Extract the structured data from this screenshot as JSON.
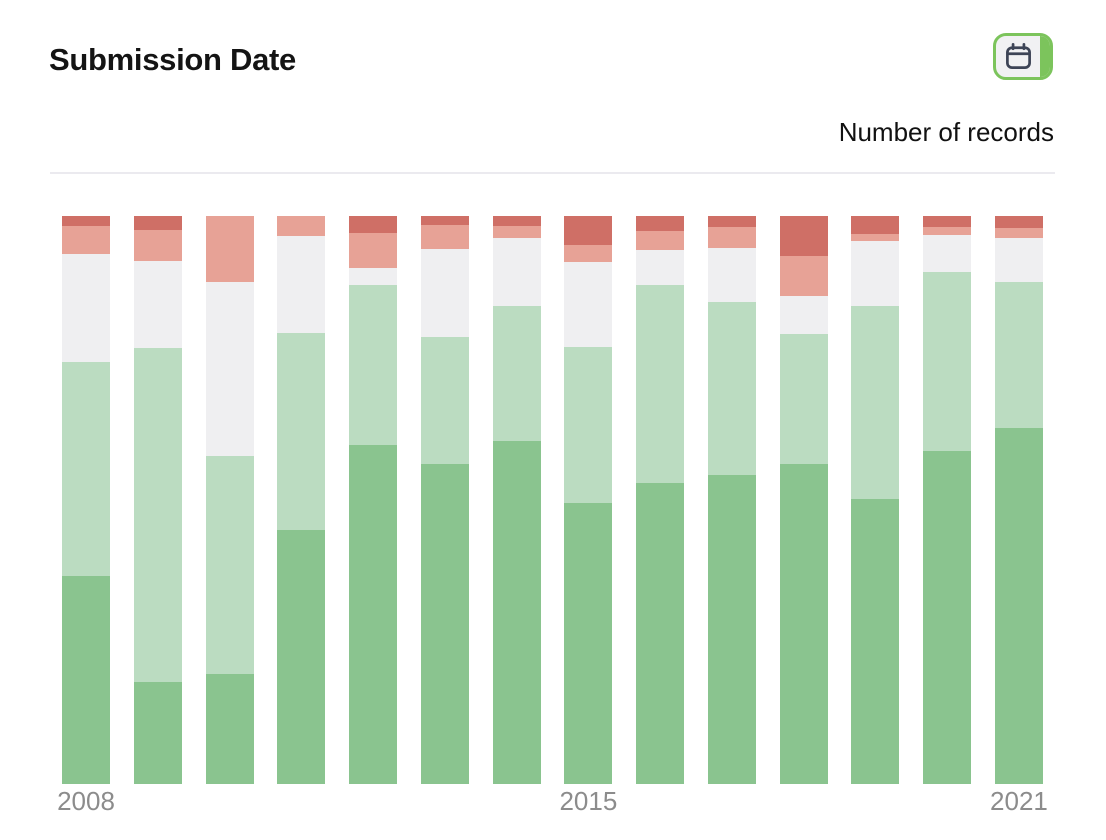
{
  "panel": {
    "title": "Submission Date",
    "y_axis_label": "Number of records"
  },
  "toolbar": {
    "calendar_button_icon": "calendar-icon"
  },
  "colors": {
    "accent_green": "#7cc45c",
    "icon_stroke": "#3d4456",
    "divider": "#ebeaef",
    "axis_label_text": "#8c8c8c",
    "title_text": "#141414",
    "segment_dark_green": "#8ac48f",
    "segment_light_green": "#bbdcc1",
    "segment_gray": "#efeff1",
    "segment_light_red": "#e7a296",
    "segment_dark_red": "#cf6f66"
  },
  "chart_data": {
    "type": "bar",
    "stacking": "percent",
    "title": "Submission Date",
    "ylabel": "Number of records",
    "xlabel": "",
    "grid": false,
    "legend": "none",
    "ylim": [
      0,
      100
    ],
    "categories": [
      "2008",
      "2009",
      "2010",
      "2011",
      "2012",
      "2013",
      "2014",
      "2015",
      "2016",
      "2017",
      "2018",
      "2019",
      "2020",
      "2021"
    ],
    "x_ticks": [
      {
        "index": 0,
        "label": "2008"
      },
      {
        "index": 7,
        "label": "2015"
      },
      {
        "index": 13,
        "label": "2021"
      }
    ],
    "stack_order_bottom_to_top": [
      "dark-green",
      "light-green",
      "gray",
      "light-red",
      "dark-red"
    ],
    "series": [
      {
        "name": "dark-green",
        "color": "#8ac48f",
        "values_pct": [
          36.7,
          18.0,
          19.2,
          44.8,
          59.7,
          56.3,
          60.4,
          49.5,
          53.0,
          54.4,
          56.3,
          50.2,
          58.6,
          62.8
        ]
      },
      {
        "name": "light-green",
        "color": "#bbdcc1",
        "values_pct": [
          37.6,
          58.9,
          38.4,
          34.6,
          28.2,
          22.4,
          23.8,
          27.5,
          34.9,
          30.5,
          22.9,
          34.0,
          31.6,
          25.6
        ]
      },
      {
        "name": "gray",
        "color": "#efeff1",
        "values_pct": [
          19.0,
          15.2,
          30.7,
          17.1,
          3.0,
          15.5,
          12.0,
          15.0,
          6.2,
          9.5,
          6.7,
          11.4,
          6.5,
          7.8
        ]
      },
      {
        "name": "light-red",
        "color": "#e7a296",
        "values_pct": [
          4.9,
          5.5,
          11.6,
          3.5,
          6.2,
          4.2,
          2.1,
          3.0,
          3.3,
          3.7,
          7.0,
          1.2,
          1.4,
          1.8
        ]
      },
      {
        "name": "dark-red",
        "color": "#cf6f66",
        "values_pct": [
          1.8,
          2.5,
          0.0,
          0.0,
          3.0,
          1.6,
          1.8,
          5.1,
          2.6,
          1.9,
          7.0,
          3.2,
          1.9,
          2.1
        ]
      }
    ]
  }
}
